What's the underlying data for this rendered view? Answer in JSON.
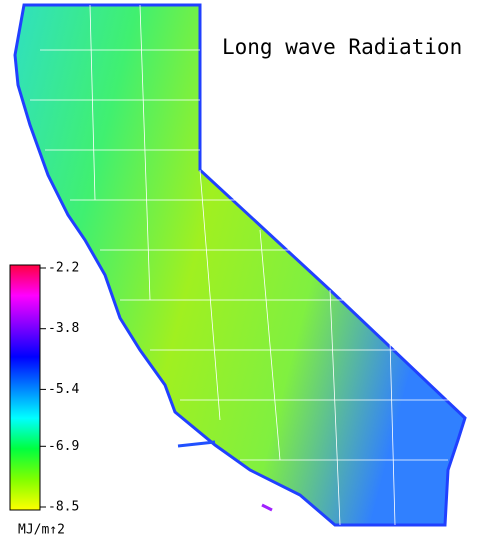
{
  "title": "Long wave Radiation",
  "colorbar": {
    "lim": [
      -8.5,
      -2.2
    ],
    "ticks": [
      -2.2,
      -3.8,
      -5.4,
      -6.9,
      -8.5
    ],
    "label": "MJ/m↑2",
    "colors": [
      "#ffff00",
      "#80ff00",
      "#00ff40",
      "#00ffff",
      "#0080ff",
      "#0000ff",
      "#8000ff",
      "#ff00ff",
      "#ff0040"
    ]
  }
}
